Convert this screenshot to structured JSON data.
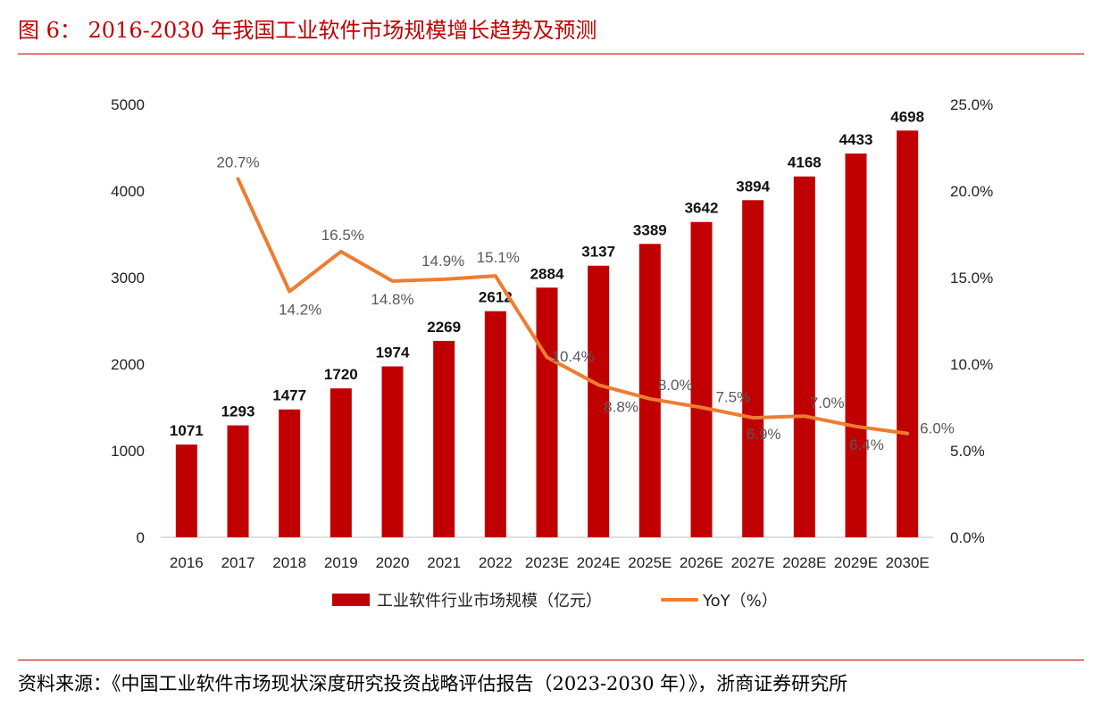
{
  "header": {
    "figure_title": "图 6：   2016-2030 年我国工业软件市场规模增长趋势及预测"
  },
  "footer": {
    "source": "资料来源：《中国工业软件市场现状深度研究投资战略评估报告（2023-2030 年）》，浙商证券研究所"
  },
  "colors": {
    "title_red": "#c00000",
    "bar_red": "#c00000",
    "line_orange": "#ed7d31"
  },
  "chart_data": {
    "type": "bar+line",
    "categories": [
      "2016",
      "2017",
      "2018",
      "2019",
      "2020",
      "2021",
      "2022",
      "2023E",
      "2024E",
      "2025E",
      "2026E",
      "2027E",
      "2028E",
      "2029E",
      "2030E"
    ],
    "series": [
      {
        "name": "工业软件行业市场规模（亿元）",
        "type": "bar",
        "axis": "left",
        "values": [
          1071,
          1293,
          1477,
          1720,
          1974,
          2269,
          2612,
          2884,
          3137,
          3389,
          3642,
          3894,
          4168,
          4433,
          4698
        ],
        "labels": [
          "1071",
          "1293",
          "1477",
          "1720",
          "1974",
          "2269",
          "2612",
          "2884",
          "3137",
          "3389",
          "3642",
          "3894",
          "4168",
          "4433",
          "4698"
        ]
      },
      {
        "name": "YoY（%）",
        "type": "line",
        "axis": "right",
        "values": [
          null,
          20.7,
          14.2,
          16.5,
          14.8,
          14.9,
          15.1,
          10.4,
          8.8,
          8.0,
          7.5,
          6.9,
          7.0,
          6.4,
          6.0
        ],
        "labels": [
          null,
          "20.7%",
          "14.2%",
          "16.5%",
          "14.8%",
          "14.9%",
          "15.1%",
          "10.4%",
          "8.8%",
          "8.0%",
          "7.5%",
          "6.9%",
          "7.0%",
          "6.4%",
          "6.0%"
        ]
      }
    ],
    "y_left": {
      "lim": [
        0,
        5000
      ],
      "ticks": [
        "0",
        "1000",
        "2000",
        "3000",
        "4000",
        "5000"
      ]
    },
    "y_right": {
      "lim": [
        0,
        25
      ],
      "ticks": [
        "0.0%",
        "5.0%",
        "10.0%",
        "15.0%",
        "20.0%",
        "25.0%"
      ]
    },
    "grid": false,
    "legend_position": "bottom"
  }
}
